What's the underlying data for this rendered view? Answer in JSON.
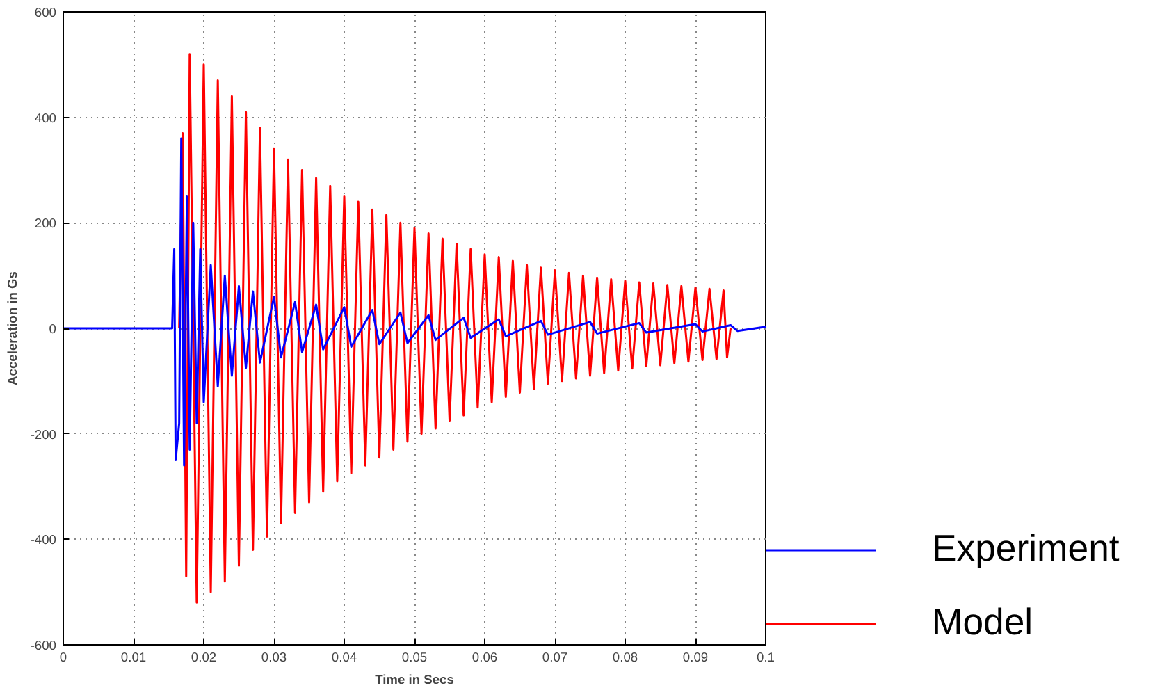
{
  "chart_data": {
    "type": "line",
    "xlabel": "Time in Secs",
    "ylabel": "Acceleration in Gs",
    "xlim": [
      0,
      0.1
    ],
    "ylim": [
      -600,
      600
    ],
    "xticks": [
      0,
      0.01,
      0.02,
      0.03,
      0.04,
      0.05,
      0.06,
      0.07,
      0.08,
      0.09,
      0.1
    ],
    "yticks": [
      -600,
      -400,
      -200,
      0,
      200,
      400,
      600
    ],
    "grid": true,
    "legend": "bottom right",
    "line_style": "solid",
    "marker": "none",
    "series": [
      {
        "name": "Experiment",
        "color": "#0000ff",
        "x": [
          0,
          0.0155,
          0.0158,
          0.016,
          0.0165,
          0.0168,
          0.0172,
          0.0176,
          0.018,
          0.0185,
          0.019,
          0.0195,
          0.02,
          0.021,
          0.022,
          0.023,
          0.024,
          0.025,
          0.026,
          0.027,
          0.028,
          0.03,
          0.031,
          0.033,
          0.034,
          0.036,
          0.037,
          0.04,
          0.041,
          0.044,
          0.045,
          0.048,
          0.049,
          0.052,
          0.053,
          0.057,
          0.058,
          0.062,
          0.063,
          0.068,
          0.069,
          0.075,
          0.076,
          0.082,
          0.083,
          0.09,
          0.091,
          0.095,
          0.096,
          0.1
        ],
        "values": [
          0,
          0,
          150,
          -250,
          -180,
          360,
          -260,
          250,
          -230,
          200,
          -180,
          150,
          -140,
          120,
          -110,
          100,
          -90,
          80,
          -75,
          70,
          -65,
          60,
          -55,
          50,
          -45,
          45,
          -40,
          40,
          -35,
          35,
          -30,
          30,
          -28,
          25,
          -22,
          20,
          -18,
          17,
          -15,
          14,
          -12,
          12,
          -10,
          10,
          -8,
          8,
          -6,
          6,
          -5,
          3
        ]
      },
      {
        "name": "Model",
        "color": "#ff0000",
        "x": [
          0.0165,
          0.017,
          0.0175,
          0.018,
          0.019,
          0.02,
          0.021,
          0.022,
          0.023,
          0.024,
          0.025,
          0.026,
          0.027,
          0.028,
          0.029,
          0.03,
          0.031,
          0.032,
          0.033,
          0.034,
          0.035,
          0.036,
          0.037,
          0.038,
          0.039,
          0.04,
          0.041,
          0.042,
          0.043,
          0.044,
          0.045,
          0.046,
          0.047,
          0.048,
          0.049,
          0.05,
          0.051,
          0.052,
          0.053,
          0.054,
          0.055,
          0.056,
          0.057,
          0.058,
          0.059,
          0.06,
          0.061,
          0.062,
          0.063,
          0.064,
          0.065,
          0.066,
          0.067,
          0.068,
          0.069,
          0.07,
          0.071,
          0.072,
          0.073,
          0.074,
          0.075,
          0.076,
          0.077,
          0.078,
          0.079,
          0.08,
          0.081,
          0.082,
          0.083,
          0.084,
          0.085,
          0.086,
          0.087,
          0.088,
          0.089,
          0.09,
          0.091,
          0.092,
          0.093,
          0.094,
          0.0945,
          0.095
        ],
        "values": [
          0,
          370,
          -470,
          520,
          -520,
          500,
          -500,
          470,
          -480,
          440,
          -450,
          410,
          -420,
          380,
          -395,
          340,
          -370,
          320,
          -350,
          300,
          -330,
          285,
          -310,
          270,
          -290,
          250,
          -275,
          240,
          -260,
          225,
          -245,
          215,
          -230,
          200,
          -215,
          190,
          -200,
          180,
          -190,
          170,
          -175,
          160,
          -165,
          150,
          -150,
          140,
          -140,
          135,
          -130,
          128,
          -122,
          120,
          -115,
          115,
          -105,
          110,
          -100,
          105,
          -95,
          100,
          -90,
          96,
          -85,
          93,
          -80,
          90,
          -76,
          87,
          -72,
          85,
          -70,
          82,
          -66,
          80,
          -63,
          77,
          -60,
          75,
          -58,
          72,
          -55,
          0
        ]
      }
    ]
  }
}
